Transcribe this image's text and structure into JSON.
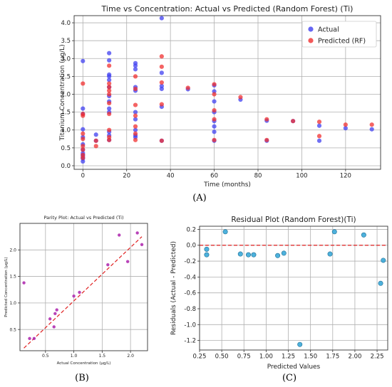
{
  "panel_labels": {
    "a": "(A)",
    "b": "(B)",
    "c": "(C)"
  },
  "chart_data": [
    {
      "id": "A",
      "type": "scatter",
      "title": "Time vs Concentration: Actual vs Predicted (Random Forest) (Ti)",
      "xlabel": "Time (months)",
      "ylabel": "Titanium Concentration (µg/L)",
      "xlim": [
        -4,
        136
      ],
      "ylim": [
        -0.1,
        4.2
      ],
      "xticks": [
        "0",
        "20",
        "40",
        "60",
        "80",
        "100",
        "120"
      ],
      "yticks": [
        "0.0",
        "0.5",
        "1.0",
        "1.5",
        "2.0",
        "2.5",
        "3.0",
        "3.5",
        "4.0"
      ],
      "grid": true,
      "legend_position": "top-right",
      "series": [
        {
          "name": "Actual",
          "color": "#4040f0",
          "points": [
            [
              0,
              2.93
            ],
            [
              0,
              1.6
            ],
            [
              0,
              1.45
            ],
            [
              0,
              1.02
            ],
            [
              0,
              0.8
            ],
            [
              0,
              0.6
            ],
            [
              0,
              0.45
            ],
            [
              0,
              0.35
            ],
            [
              0,
              0.3
            ],
            [
              0,
              0.25
            ],
            [
              0,
              0.2
            ],
            [
              0,
              0.12
            ],
            [
              6,
              0.87
            ],
            [
              6,
              0.7
            ],
            [
              12,
              3.15
            ],
            [
              12,
              2.95
            ],
            [
              12,
              2.55
            ],
            [
              12,
              2.5
            ],
            [
              12,
              2.4
            ],
            [
              12,
              2.2
            ],
            [
              12,
              1.95
            ],
            [
              12,
              1.8
            ],
            [
              12,
              1.6
            ],
            [
              12,
              1.5
            ],
            [
              12,
              0.95
            ],
            [
              12,
              0.85
            ],
            [
              12,
              0.72
            ],
            [
              24,
              2.87
            ],
            [
              24,
              2.8
            ],
            [
              24,
              2.7
            ],
            [
              24,
              2.2
            ],
            [
              24,
              2.1
            ],
            [
              24,
              1.5
            ],
            [
              24,
              1.3
            ],
            [
              24,
              1.0
            ],
            [
              24,
              0.85
            ],
            [
              24,
              0.8
            ],
            [
              36,
              4.13
            ],
            [
              36,
              2.6
            ],
            [
              36,
              2.23
            ],
            [
              36,
              2.15
            ],
            [
              36,
              1.65
            ],
            [
              36,
              0.7
            ],
            [
              48,
              2.14
            ],
            [
              60,
              2.25
            ],
            [
              60,
              2.08
            ],
            [
              60,
              1.8
            ],
            [
              60,
              1.5
            ],
            [
              60,
              1.25
            ],
            [
              60,
              1.1
            ],
            [
              60,
              0.95
            ],
            [
              60,
              0.7
            ],
            [
              72,
              1.85
            ],
            [
              84,
              1.26
            ],
            [
              84,
              0.7
            ],
            [
              96,
              1.25
            ],
            [
              108,
              1.12
            ],
            [
              108,
              0.7
            ],
            [
              120,
              1.05
            ],
            [
              132,
              1.02
            ]
          ]
        },
        {
          "name": "Predicted (RF)",
          "color": "#f03030",
          "points": [
            [
              0,
              2.3
            ],
            [
              0,
              1.45
            ],
            [
              0,
              1.4
            ],
            [
              0,
              0.9
            ],
            [
              0,
              0.75
            ],
            [
              0,
              0.55
            ],
            [
              0,
              0.45
            ],
            [
              0,
              0.3
            ],
            [
              0,
              0.22
            ],
            [
              6,
              0.7
            ],
            [
              6,
              0.55
            ],
            [
              12,
              2.8
            ],
            [
              12,
              2.3
            ],
            [
              12,
              2.2
            ],
            [
              12,
              2.1
            ],
            [
              12,
              2.0
            ],
            [
              12,
              1.75
            ],
            [
              12,
              1.45
            ],
            [
              12,
              1.0
            ],
            [
              12,
              0.8
            ],
            [
              12,
              0.72
            ],
            [
              24,
              2.5
            ],
            [
              24,
              2.15
            ],
            [
              24,
              1.7
            ],
            [
              24,
              1.4
            ],
            [
              24,
              1.1
            ],
            [
              24,
              0.9
            ],
            [
              24,
              0.72
            ],
            [
              36,
              3.06
            ],
            [
              36,
              2.77
            ],
            [
              36,
              2.33
            ],
            [
              36,
              1.72
            ],
            [
              36,
              0.7
            ],
            [
              48,
              2.18
            ],
            [
              60,
              2.28
            ],
            [
              60,
              2.0
            ],
            [
              60,
              1.55
            ],
            [
              60,
              1.3
            ],
            [
              60,
              0.72
            ],
            [
              72,
              1.92
            ],
            [
              84,
              1.3
            ],
            [
              84,
              0.72
            ],
            [
              96,
              1.25
            ],
            [
              108,
              1.23
            ],
            [
              108,
              0.83
            ],
            [
              120,
              1.15
            ],
            [
              132,
              1.15
            ]
          ]
        }
      ]
    },
    {
      "id": "B",
      "type": "scatter",
      "title": "Parity Plot: Actual vs Predicted (Ti)",
      "xlabel": "Actual Concentration (µg/L)",
      "ylabel": "Predicted Concentration (µg/L)",
      "xlim": [
        0.05,
        2.3
      ],
      "ylim": [
        0.1,
        2.5
      ],
      "xticks": [
        "0.5",
        "1.0",
        "1.5",
        "2.0"
      ],
      "yticks": [
        "0.5",
        "1.0",
        "1.5",
        "2.0"
      ],
      "grid": true,
      "series": [
        {
          "name": "",
          "color": "#b02fb0",
          "points": [
            [
              0.12,
              1.38
            ],
            [
              0.22,
              0.33
            ],
            [
              0.3,
              0.33
            ],
            [
              0.58,
              0.7
            ],
            [
              0.65,
              0.55
            ],
            [
              0.67,
              0.8
            ],
            [
              0.7,
              0.87
            ],
            [
              1.0,
              1.13
            ],
            [
              1.1,
              1.2
            ],
            [
              1.6,
              1.72
            ],
            [
              1.8,
              2.28
            ],
            [
              1.95,
              1.78
            ],
            [
              2.12,
              2.32
            ],
            [
              2.2,
              2.1
            ]
          ]
        }
      ],
      "reference_line": {
        "style": "dashed",
        "color": "#e02020",
        "from": [
          0.12,
          0.15
        ],
        "to": [
          2.2,
          2.25
        ]
      }
    },
    {
      "id": "C",
      "type": "scatter",
      "title": "Residual Plot (Random Forest)(Ti)",
      "xlabel": "Predicted Values",
      "ylabel": "Residuals (Actual - Predicted)",
      "xlim": [
        0.25,
        2.37
      ],
      "ylim": [
        -1.32,
        0.24
      ],
      "xticks": [
        "0.25",
        "0.50",
        "0.75",
        "1.00",
        "1.25",
        "1.50",
        "1.75",
        "2.00",
        "2.25"
      ],
      "yticks": [
        "0.2",
        "0.0",
        "-0.2",
        "-0.4",
        "-0.6",
        "-0.8",
        "-1.0",
        "-1.2"
      ],
      "grid": true,
      "series": [
        {
          "name": "",
          "color": "#3aa8d8",
          "points": [
            [
              0.33,
              -0.05
            ],
            [
              0.33,
              -0.12
            ],
            [
              0.54,
              0.17
            ],
            [
              0.71,
              -0.11
            ],
            [
              0.8,
              -0.12
            ],
            [
              0.86,
              -0.12
            ],
            [
              1.13,
              -0.13
            ],
            [
              1.2,
              -0.1
            ],
            [
              1.38,
              -1.25
            ],
            [
              1.72,
              -0.11
            ],
            [
              1.77,
              0.17
            ],
            [
              2.1,
              0.13
            ],
            [
              2.29,
              -0.48
            ],
            [
              2.32,
              -0.19
            ]
          ]
        }
      ],
      "reference_line": {
        "style": "dashed",
        "color": "#e02020",
        "y": 0
      }
    }
  ]
}
